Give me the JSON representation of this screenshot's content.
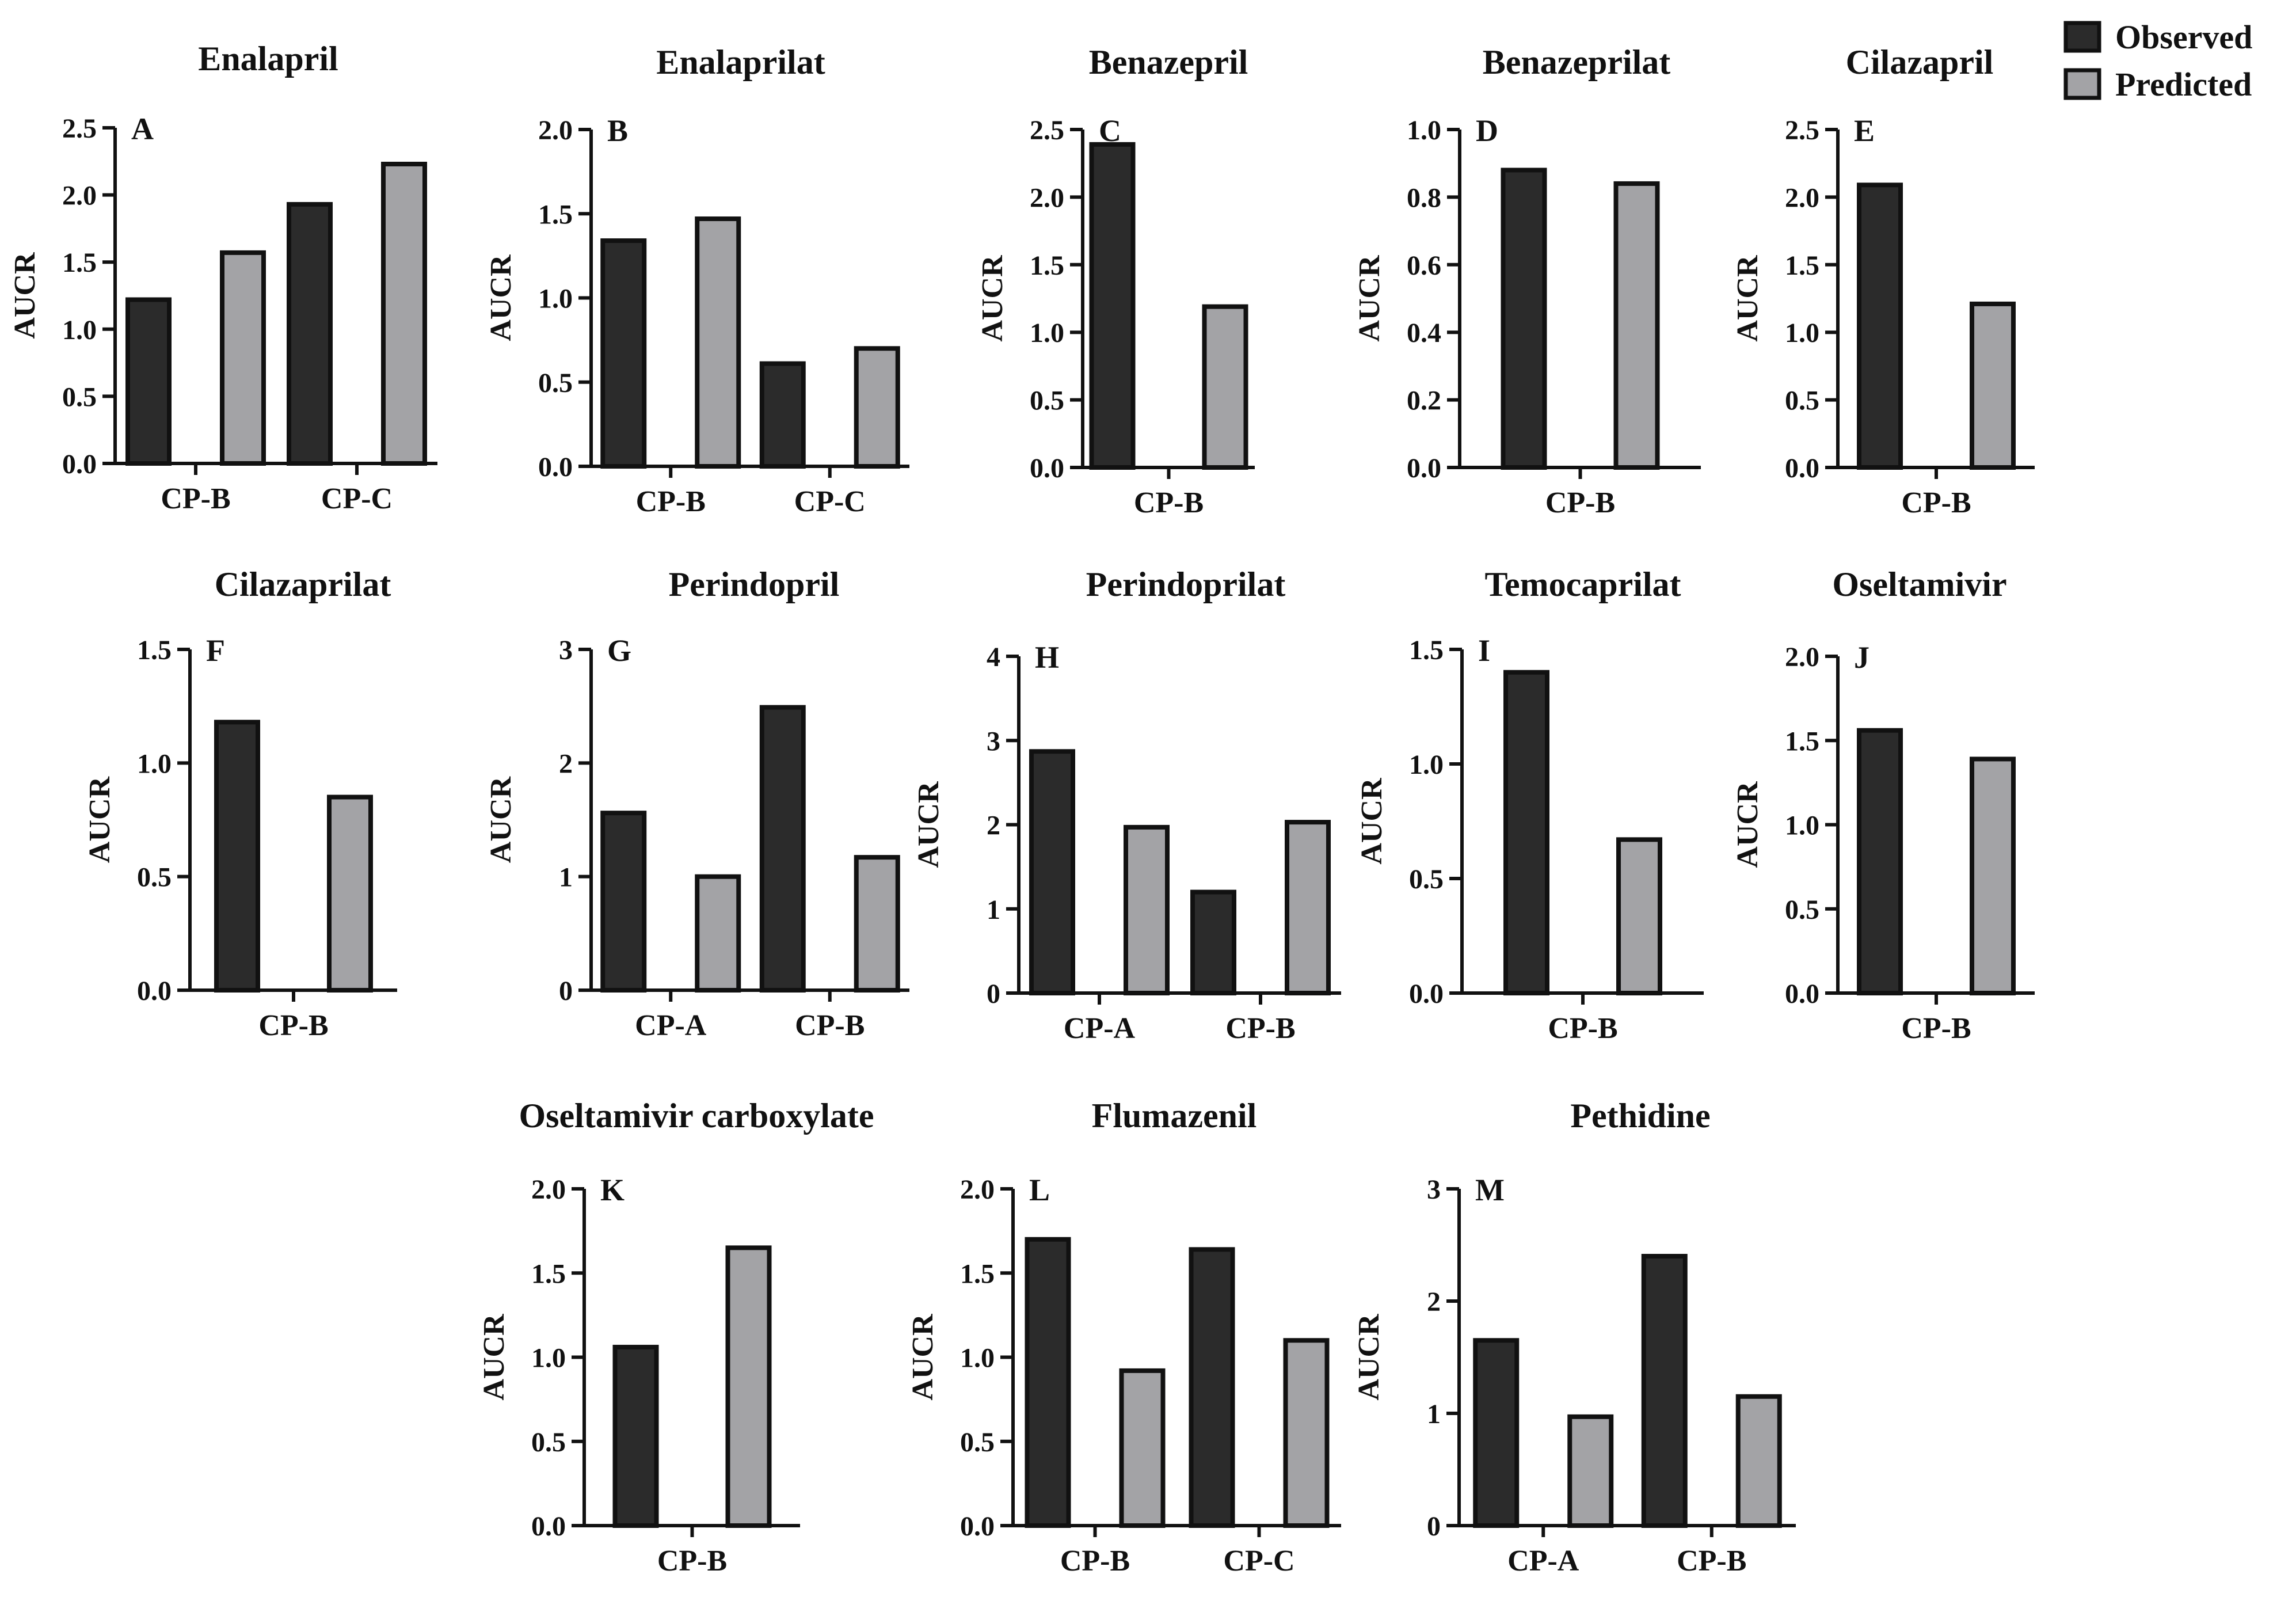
{
  "legend": [
    {
      "label": "Observed",
      "color": "#2b2b2b"
    },
    {
      "label": "Predicted",
      "color": "#a3a3a6"
    }
  ],
  "chart_data": [
    {
      "panel": "A",
      "title": "Enalapril",
      "type": "bar",
      "ylabel": "AUCR",
      "ylim": [
        0,
        2.5
      ],
      "yticks": [
        "0.0",
        "0.5",
        "1.0",
        "1.5",
        "2.0",
        "2.5"
      ],
      "categories": [
        "CP-B",
        "CP-C"
      ],
      "series": [
        {
          "name": "Observed",
          "values": [
            1.22,
            1.93
          ]
        },
        {
          "name": "Predicted",
          "values": [
            1.57,
            2.23
          ]
        }
      ]
    },
    {
      "panel": "B",
      "title": "Enalaprilat",
      "type": "bar",
      "ylabel": "AUCR",
      "ylim": [
        0,
        2.0
      ],
      "yticks": [
        "0.0",
        "0.5",
        "1.0",
        "1.5",
        "2.0"
      ],
      "categories": [
        "CP-B",
        "CP-C"
      ],
      "series": [
        {
          "name": "Observed",
          "values": [
            1.34,
            0.61
          ]
        },
        {
          "name": "Predicted",
          "values": [
            1.47,
            0.7
          ]
        }
      ]
    },
    {
      "panel": "C",
      "title": "Benazepril",
      "type": "bar",
      "ylabel": "AUCR",
      "ylim": [
        0,
        2.5
      ],
      "yticks": [
        "0.0",
        "0.5",
        "1.0",
        "1.5",
        "2.0",
        "2.5"
      ],
      "categories": [
        "CP-B"
      ],
      "series": [
        {
          "name": "Observed",
          "values": [
            2.39
          ]
        },
        {
          "name": "Predicted",
          "values": [
            1.19
          ]
        }
      ]
    },
    {
      "panel": "D",
      "title": "Benazeprilat",
      "type": "bar",
      "ylabel": "AUCR",
      "ylim": [
        0,
        1.0
      ],
      "yticks": [
        "0.0",
        "0.2",
        "0.4",
        "0.6",
        "0.8",
        "1.0"
      ],
      "categories": [
        "CP-B"
      ],
      "series": [
        {
          "name": "Observed",
          "values": [
            0.88
          ]
        },
        {
          "name": "Predicted",
          "values": [
            0.84
          ]
        }
      ]
    },
    {
      "panel": "E",
      "title": "Cilazapril",
      "type": "bar",
      "ylabel": "AUCR",
      "ylim": [
        0,
        2.5
      ],
      "yticks": [
        "0.0",
        "0.5",
        "1.0",
        "1.5",
        "2.0",
        "2.5"
      ],
      "categories": [
        "CP-B"
      ],
      "series": [
        {
          "name": "Observed",
          "values": [
            2.09
          ]
        },
        {
          "name": "Predicted",
          "values": [
            1.21
          ]
        }
      ]
    },
    {
      "panel": "F",
      "title": "Cilazaprilat",
      "type": "bar",
      "ylabel": "AUCR",
      "ylim": [
        0,
        1.5
      ],
      "yticks": [
        "0.0",
        "0.5",
        "1.0",
        "1.5"
      ],
      "categories": [
        "CP-B"
      ],
      "series": [
        {
          "name": "Observed",
          "values": [
            1.18
          ]
        },
        {
          "name": "Predicted",
          "values": [
            0.85
          ]
        }
      ]
    },
    {
      "panel": "G",
      "title": "Perindopril",
      "type": "bar",
      "ylabel": "AUCR",
      "ylim": [
        0,
        3
      ],
      "yticks": [
        "0",
        "1",
        "2",
        "3"
      ],
      "categories": [
        "CP-A",
        "CP-B"
      ],
      "series": [
        {
          "name": "Observed",
          "values": [
            1.56,
            2.49
          ]
        },
        {
          "name": "Predicted",
          "values": [
            1.0,
            1.17
          ]
        }
      ]
    },
    {
      "panel": "H",
      "title": "Perindoprilat",
      "type": "bar",
      "ylabel": "AUCR",
      "ylim": [
        0,
        4
      ],
      "yticks": [
        "0",
        "1",
        "2",
        "3",
        "4"
      ],
      "categories": [
        "CP-A",
        "CP-B"
      ],
      "series": [
        {
          "name": "Observed",
          "values": [
            2.87,
            1.2
          ]
        },
        {
          "name": "Predicted",
          "values": [
            1.97,
            2.03
          ]
        }
      ]
    },
    {
      "panel": "I",
      "title": "Temocaprilat",
      "type": "bar",
      "ylabel": "AUCR",
      "ylim": [
        0,
        1.5
      ],
      "yticks": [
        "0.0",
        "0.5",
        "1.0",
        "1.5"
      ],
      "categories": [
        "CP-B"
      ],
      "series": [
        {
          "name": "Observed",
          "values": [
            1.4
          ]
        },
        {
          "name": "Predicted",
          "values": [
            0.67
          ]
        }
      ]
    },
    {
      "panel": "J",
      "title": "Oseltamivir",
      "type": "bar",
      "ylabel": "AUCR",
      "ylim": [
        0,
        2.0
      ],
      "yticks": [
        "0.0",
        "0.5",
        "1.0",
        "1.5",
        "2.0"
      ],
      "categories": [
        "CP-B"
      ],
      "series": [
        {
          "name": "Observed",
          "values": [
            1.56
          ]
        },
        {
          "name": "Predicted",
          "values": [
            1.39
          ]
        }
      ]
    },
    {
      "panel": "K",
      "title": "Oseltamivir carboxylate",
      "type": "bar",
      "ylabel": "AUCR",
      "ylim": [
        0,
        2.0
      ],
      "yticks": [
        "0.0",
        "0.5",
        "1.0",
        "1.5",
        "2.0"
      ],
      "categories": [
        "CP-B"
      ],
      "series": [
        {
          "name": "Observed",
          "values": [
            1.06
          ]
        },
        {
          "name": "Predicted",
          "values": [
            1.65
          ]
        }
      ]
    },
    {
      "panel": "L",
      "title": "Flumazenil",
      "type": "bar",
      "ylabel": "AUCR",
      "ylim": [
        0,
        2.0
      ],
      "yticks": [
        "0.0",
        "0.5",
        "1.0",
        "1.5",
        "2.0"
      ],
      "categories": [
        "CP-B",
        "CP-C"
      ],
      "series": [
        {
          "name": "Observed",
          "values": [
            1.7,
            1.64
          ]
        },
        {
          "name": "Predicted",
          "values": [
            0.92,
            1.1
          ]
        }
      ]
    },
    {
      "panel": "M",
      "title": "Pethidine",
      "type": "bar",
      "ylabel": "AUCR",
      "ylim": [
        0,
        3
      ],
      "yticks": [
        "0",
        "1",
        "2",
        "3"
      ],
      "categories": [
        "CP-A",
        "CP-B"
      ],
      "series": [
        {
          "name": "Observed",
          "values": [
            1.65,
            2.4
          ]
        },
        {
          "name": "Predicted",
          "values": [
            0.97,
            1.15
          ]
        }
      ]
    }
  ]
}
